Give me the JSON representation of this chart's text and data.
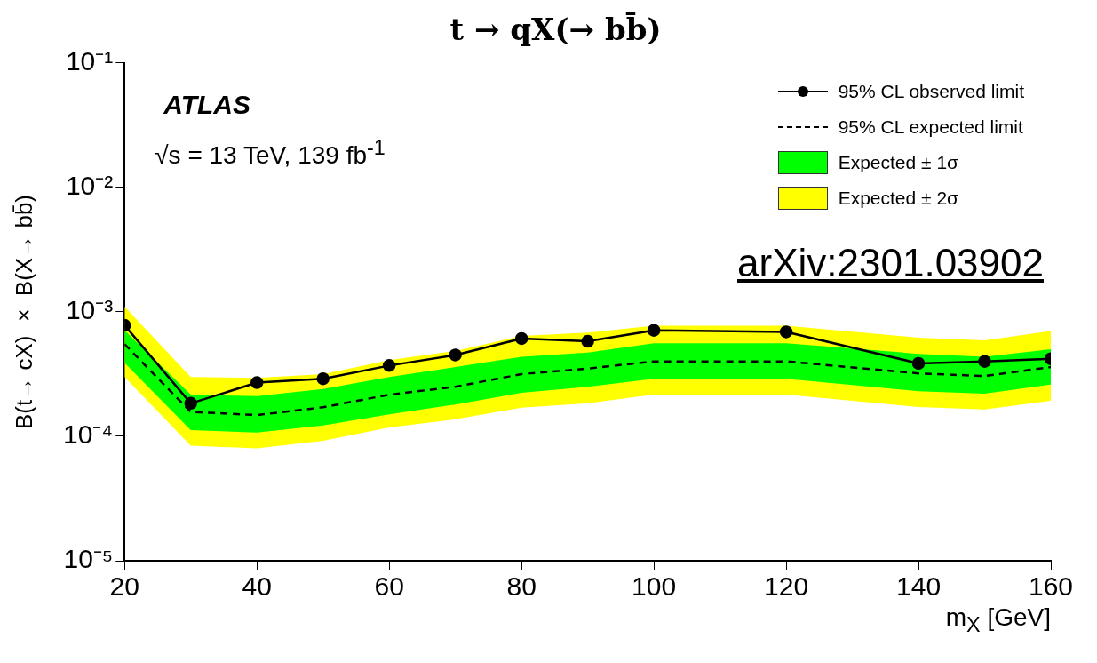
{
  "chart_data": {
    "type": "line",
    "title": "t → qX(→ bb̄)",
    "xlabel": "m$_{X}$ [GeV]",
    "ylabel": "B(t→ cX) × B(X→ bb̄)",
    "annotations": [
      "ATLAS",
      "√s = 13 TeV, 139 fb$^{-1}$",
      "arXiv:2301.03902"
    ],
    "x": [
      20,
      30,
      40,
      50,
      60,
      70,
      80,
      90,
      100,
      120,
      140,
      150,
      160
    ],
    "series": [
      {
        "name": "95% CL observed limit",
        "type": "line",
        "color": "#000000",
        "marker": "circle",
        "line_style": "solid",
        "values": [
          0.00078,
          0.000184,
          0.00027,
          0.00029,
          0.00037,
          0.00045,
          0.00061,
          0.00058,
          0.00071,
          0.00069,
          0.000385,
          0.0004,
          0.00042
        ]
      },
      {
        "name": "95% CL expected limit",
        "type": "line",
        "color": "#000000",
        "marker": "none",
        "line_style": "dashed",
        "values": [
          0.00055,
          0.000157,
          0.000148,
          0.000171,
          0.000216,
          0.00025,
          0.000316,
          0.00035,
          0.0004,
          0.0004,
          0.00032,
          0.000305,
          0.00036
        ]
      },
      {
        "name": "Expected ± 1σ",
        "type": "line",
        "color": "#00ff00",
        "values": [
          null,
          null,
          null,
          null,
          null,
          null,
          null,
          null,
          null,
          null,
          null,
          null,
          null
        ],
        "lower": [
          0.00039,
          0.000112,
          0.000107,
          0.000122,
          0.00015,
          0.00018,
          0.000224,
          0.00025,
          0.00029,
          0.00029,
          0.00023,
          0.00022,
          0.00026
        ],
        "upper": [
          0.00071,
          0.000216,
          0.00021,
          0.00024,
          0.0003,
          0.00036,
          0.000435,
          0.00047,
          0.00056,
          0.00056,
          0.00046,
          0.000435,
          0.0005
        ]
      },
      {
        "name": "Expected ± 2σ",
        "type": "line",
        "color": "#ffff00",
        "values": [
          null,
          null,
          null,
          null,
          null,
          null,
          null,
          null,
          null,
          null,
          null,
          null,
          null
        ],
        "lower": [
          0.0003,
          8.4e-05,
          8e-05,
          9.2e-05,
          0.000118,
          0.000137,
          0.00017,
          0.000184,
          0.000216,
          0.000216,
          0.000172,
          0.000164,
          0.000193
        ],
        "upper": [
          0.0011,
          0.0003,
          0.000295,
          0.000316,
          0.00041,
          0.000485,
          0.00064,
          0.00068,
          0.000775,
          0.000775,
          0.00062,
          0.00059,
          0.0007
        ]
      }
    ],
    "xlim": [
      20,
      160
    ],
    "xticks": [
      20,
      40,
      60,
      80,
      100,
      120,
      140,
      160
    ],
    "ylim": [
      1e-05,
      0.1
    ],
    "yticks": [
      {
        "value": 1e-05,
        "label": "10⁻⁵"
      },
      {
        "value": 0.0001,
        "label": "10⁻⁴"
      },
      {
        "value": 0.001,
        "label": "10⁻³"
      },
      {
        "value": 0.01,
        "label": "10⁻²"
      },
      {
        "value": 0.1,
        "label": "10⁻¹"
      }
    ],
    "log": "y",
    "grid": false,
    "legend": "top right"
  }
}
